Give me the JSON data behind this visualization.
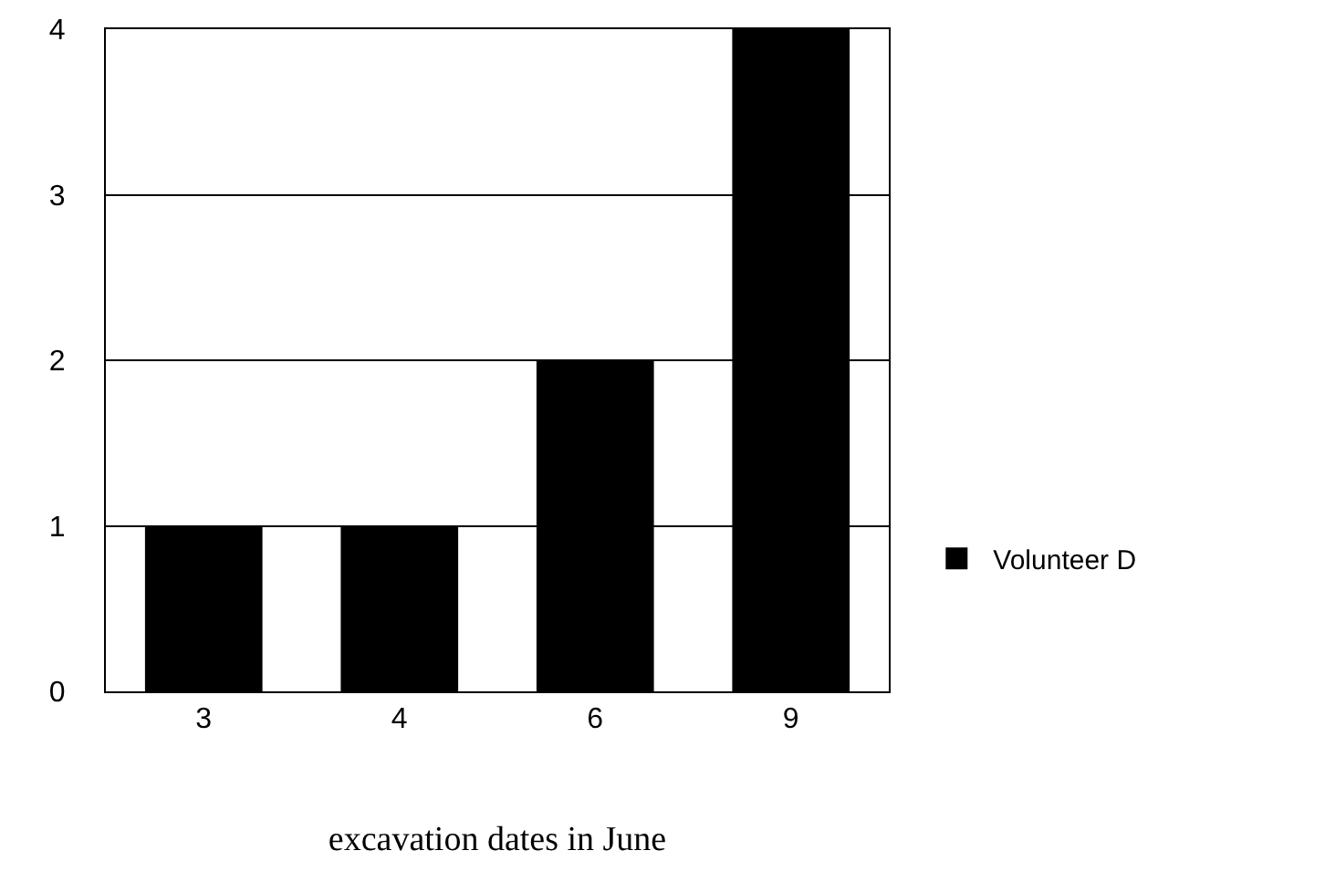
{
  "chart_data": {
    "type": "bar",
    "xlabel": "excavation dates in June",
    "categories": [
      "3",
      "4",
      "6",
      "9"
    ],
    "series": [
      {
        "name": "Volunteer D",
        "color": "#000000",
        "values": [
          1,
          1,
          2,
          4
        ]
      }
    ],
    "ylim": [
      0,
      4
    ],
    "yticks": [
      0,
      1,
      2,
      3,
      4
    ],
    "grid": "y",
    "legend": "right"
  }
}
